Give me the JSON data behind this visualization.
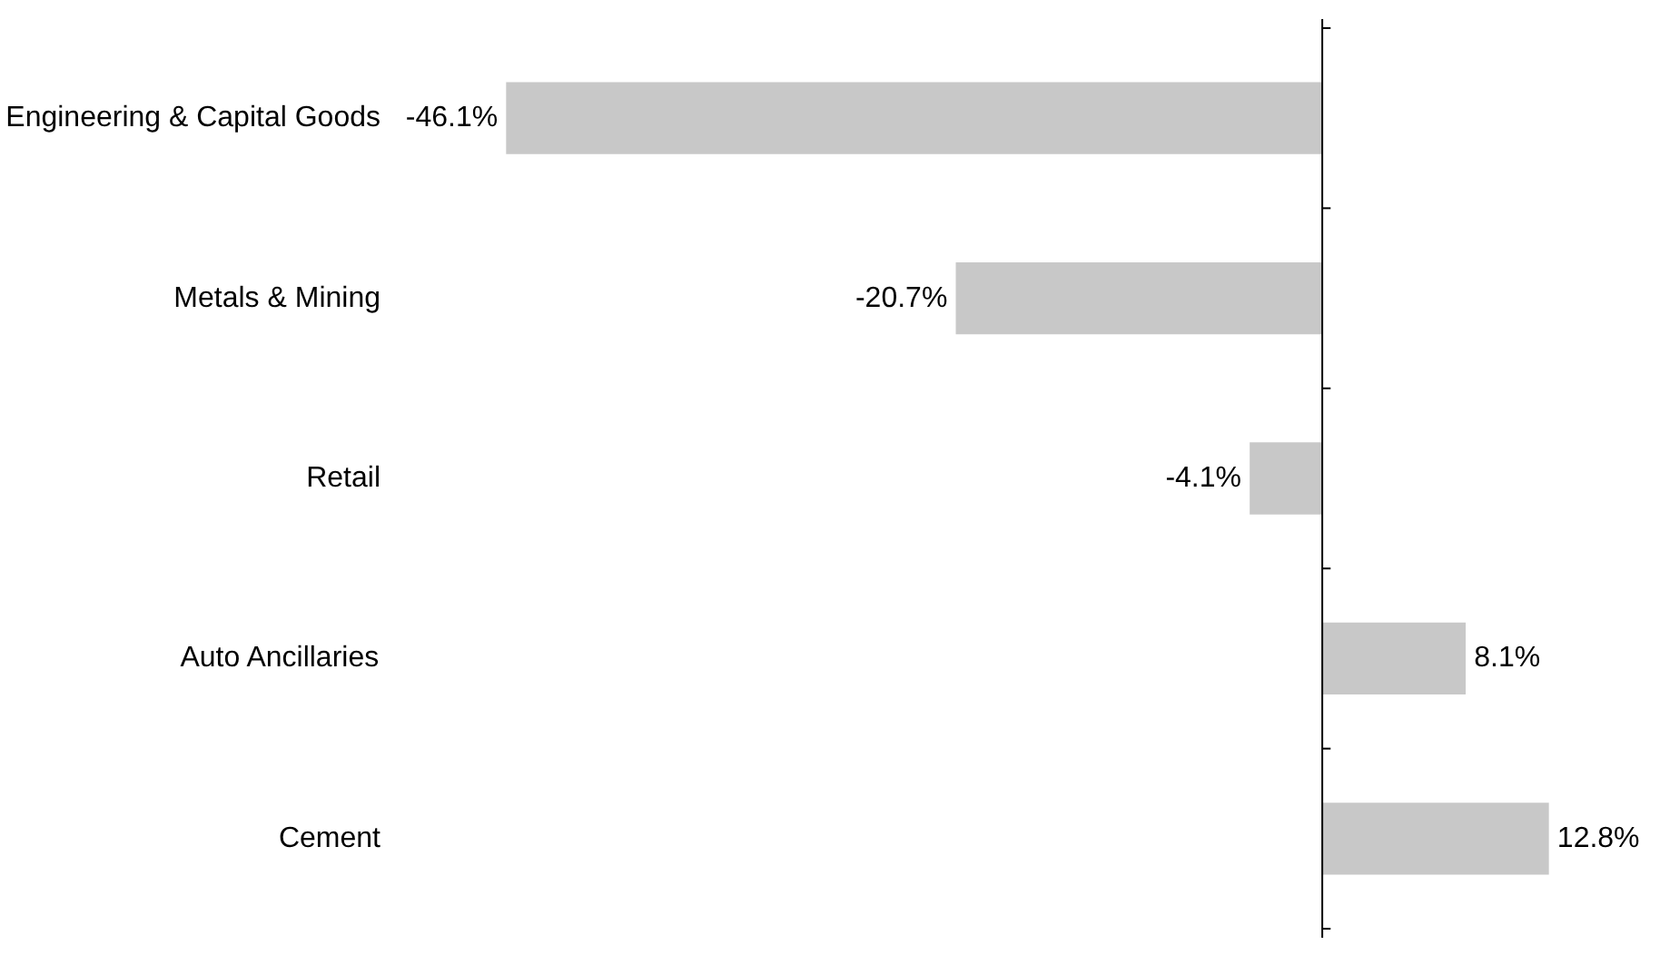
{
  "chart_data": {
    "type": "bar",
    "orientation": "horizontal",
    "categories": [
      "Engineering & Capital Goods",
      "Metals & Mining",
      "Retail",
      "Auto Ancillaries",
      "Cement"
    ],
    "values": [
      -46.1,
      -20.7,
      -4.1,
      8.1,
      12.8
    ],
    "value_labels": [
      "-46.1%",
      "-20.7%",
      "-4.1%",
      "8.1%",
      "12.8%"
    ],
    "color": "#c8c8c8",
    "grid": false
  }
}
